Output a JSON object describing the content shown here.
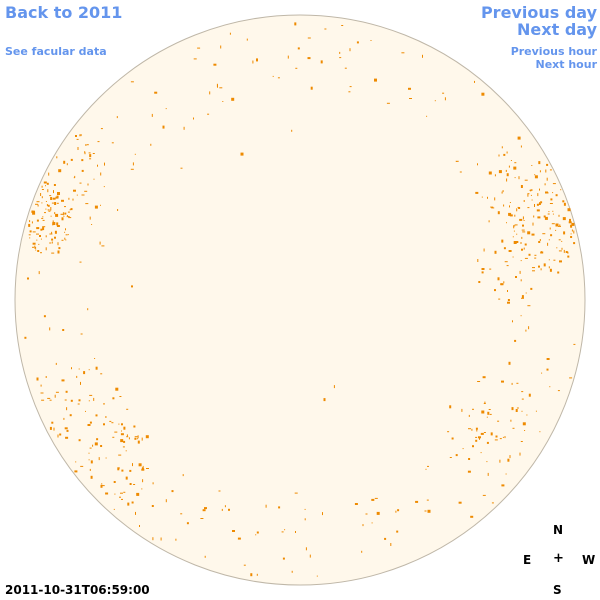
{
  "colors": {
    "disk_fill": "#FFF8EB",
    "disk_stroke": "#BFB7A8",
    "facula": "#EE8A00",
    "link": "#6495ED"
  },
  "nav": {
    "back_label": "Back to 2011",
    "facular_label": "See facular data",
    "prev_day_label": "Previous day",
    "next_day_label": "Next day",
    "prev_hour_label": "Previous hour",
    "next_hour_label": "Next hour"
  },
  "compass": {
    "north": "N",
    "east": "E",
    "center": "+",
    "west": "W",
    "south": "S"
  },
  "timestamp": "2011-10-31T06:59:00"
}
